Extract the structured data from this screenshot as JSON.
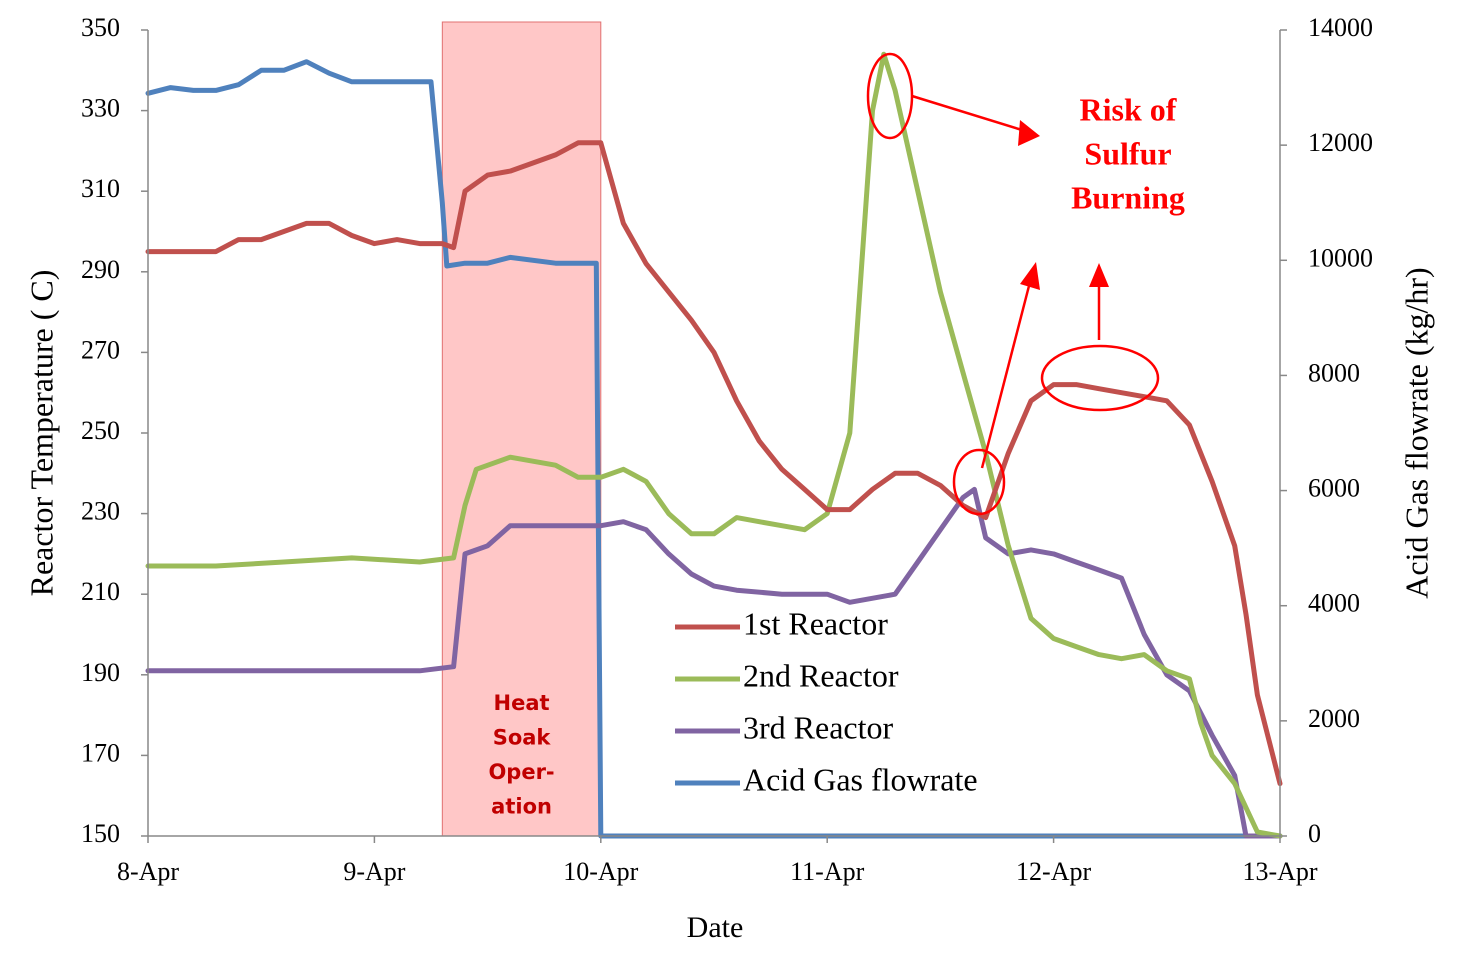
{
  "chart_data": {
    "type": "line",
    "xlabel": "Date",
    "ylabel": "Reactor Temperature ( C)",
    "y2label": "Acid Gas flowrate (kg/hr)",
    "xlim": [
      0,
      5
    ],
    "xticks": [
      {
        "value": 0,
        "label": "8-Apr"
      },
      {
        "value": 1,
        "label": "9-Apr"
      },
      {
        "value": 2,
        "label": "10-Apr"
      },
      {
        "value": 3,
        "label": "11-Apr"
      },
      {
        "value": 4,
        "label": "12-Apr"
      },
      {
        "value": 5,
        "label": "13-Apr"
      }
    ],
    "ylim": [
      150,
      350
    ],
    "yticks": [
      150,
      170,
      190,
      210,
      230,
      250,
      270,
      290,
      310,
      330,
      350
    ],
    "y2lim": [
      0,
      14000
    ],
    "y2ticks": [
      0,
      2000,
      4000,
      6000,
      8000,
      10000,
      12000,
      14000
    ],
    "span": {
      "x": [
        1.3,
        2.0
      ],
      "color": "#ffc7c7",
      "label": [
        "Heat",
        "Soak",
        "Oper-",
        "ation"
      ]
    },
    "annotation": [
      "Risk of",
      "Sulfur",
      "Burning"
    ],
    "series": [
      {
        "name": "1st Reactor",
        "color": "#c0504d",
        "x": [
          0,
          0.1,
          0.2,
          0.3,
          0.4,
          0.5,
          0.6,
          0.7,
          0.8,
          0.9,
          1.0,
          1.1,
          1.2,
          1.3,
          1.35,
          1.4,
          1.5,
          1.6,
          1.7,
          1.8,
          1.9,
          2.0,
          2.1,
          2.2,
          2.3,
          2.4,
          2.5,
          2.6,
          2.7,
          2.8,
          2.9,
          3.0,
          3.1,
          3.2,
          3.3,
          3.4,
          3.5,
          3.6,
          3.7,
          3.8,
          3.9,
          4.0,
          4.1,
          4.2,
          4.3,
          4.4,
          4.5,
          4.6,
          4.7,
          4.8,
          4.85,
          4.9,
          5.0
        ],
        "values": [
          295,
          295,
          295,
          295,
          298,
          298,
          300,
          302,
          302,
          299,
          297,
          298,
          297,
          297,
          296,
          310,
          314,
          315,
          317,
          319,
          322,
          322,
          302,
          292,
          285,
          278,
          270,
          258,
          248,
          241,
          236,
          231,
          231,
          236,
          240,
          240,
          237,
          232,
          229,
          245,
          258,
          262,
          262,
          261,
          260,
          259,
          258,
          252,
          238,
          222,
          205,
          185,
          163
        ]
      },
      {
        "name": "2nd Reactor",
        "color": "#9bbb59",
        "x": [
          0,
          0.3,
          0.6,
          0.9,
          1.2,
          1.35,
          1.4,
          1.45,
          1.6,
          1.8,
          1.9,
          2.0,
          2.1,
          2.2,
          2.3,
          2.4,
          2.5,
          2.6,
          2.7,
          2.8,
          2.9,
          3.0,
          3.1,
          3.15,
          3.2,
          3.25,
          3.3,
          3.4,
          3.5,
          3.6,
          3.7,
          3.8,
          3.9,
          4.0,
          4.1,
          4.2,
          4.3,
          4.4,
          4.5,
          4.6,
          4.65,
          4.7,
          4.8,
          4.9,
          5.0
        ],
        "values": [
          217,
          217,
          218,
          219,
          218,
          219,
          232,
          241,
          244,
          242,
          239,
          239,
          241,
          238,
          230,
          225,
          225,
          229,
          228,
          227,
          226,
          230,
          250,
          290,
          330,
          344,
          335,
          310,
          285,
          265,
          245,
          222,
          204,
          199,
          197,
          195,
          194,
          195,
          191,
          189,
          178,
          170,
          163,
          151,
          150
        ]
      },
      {
        "name": "3rd Reactor",
        "color": "#8064a2",
        "x": [
          0,
          0.3,
          0.6,
          0.9,
          1.2,
          1.35,
          1.4,
          1.5,
          1.6,
          1.8,
          2.0,
          2.1,
          2.2,
          2.3,
          2.4,
          2.5,
          2.6,
          2.8,
          3.0,
          3.1,
          3.3,
          3.4,
          3.5,
          3.6,
          3.65,
          3.7,
          3.8,
          3.9,
          4.0,
          4.1,
          4.2,
          4.3,
          4.4,
          4.5,
          4.6,
          4.7,
          4.8,
          4.85,
          5.0
        ],
        "values": [
          191,
          191,
          191,
          191,
          191,
          192,
          220,
          222,
          227,
          227,
          227,
          228,
          226,
          220,
          215,
          212,
          211,
          210,
          210,
          208,
          210,
          218,
          226,
          234,
          236,
          224,
          220,
          221,
          220,
          218,
          216,
          214,
          200,
          190,
          186,
          175,
          165,
          150,
          150
        ]
      },
      {
        "name": "Acid Gas flowrate",
        "color": "#4f81bd",
        "axis": "y2",
        "x": [
          0,
          0.1,
          0.2,
          0.3,
          0.4,
          0.5,
          0.6,
          0.7,
          0.8,
          0.9,
          1.0,
          1.1,
          1.25,
          1.3,
          1.32,
          1.4,
          1.5,
          1.6,
          1.8,
          1.98,
          2.0,
          5.0
        ],
        "values": [
          12900,
          13000,
          12950,
          12950,
          13050,
          13300,
          13300,
          13450,
          13250,
          13100,
          13100,
          13100,
          13100,
          11000,
          9900,
          9950,
          9950,
          10050,
          9950,
          9950,
          0,
          0
        ]
      }
    ]
  }
}
